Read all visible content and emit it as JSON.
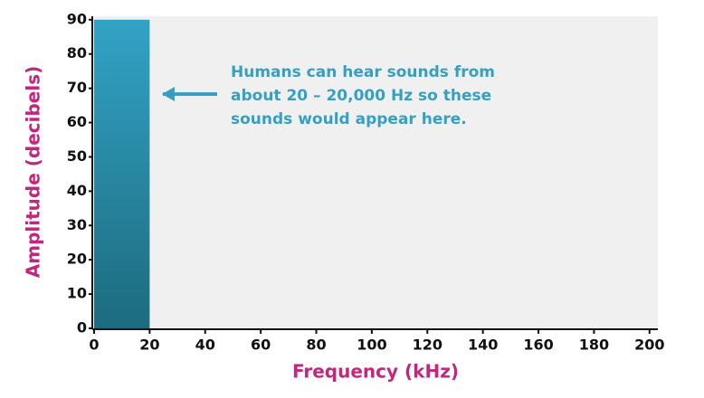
{
  "chart_data": {
    "type": "range",
    "x_label": "Frequency (kHz)",
    "y_label": "Amplitude (decibels)",
    "xlim": [
      0,
      203
    ],
    "ylim": [
      0,
      91
    ],
    "xticks": [
      0,
      20,
      40,
      60,
      80,
      100,
      120,
      140,
      160,
      180,
      200
    ],
    "yticks": [
      0,
      10,
      20,
      30,
      40,
      50,
      60,
      70,
      80,
      90
    ],
    "ranges": [
      {
        "x": [
          0,
          20
        ],
        "y": [
          0,
          90
        ],
        "color": "#2b8fae"
      }
    ],
    "annotation": [
      "Humans can hear sounds from",
      "about 20 – 20,000 Hz so these",
      "sounds would appear here."
    ]
  }
}
